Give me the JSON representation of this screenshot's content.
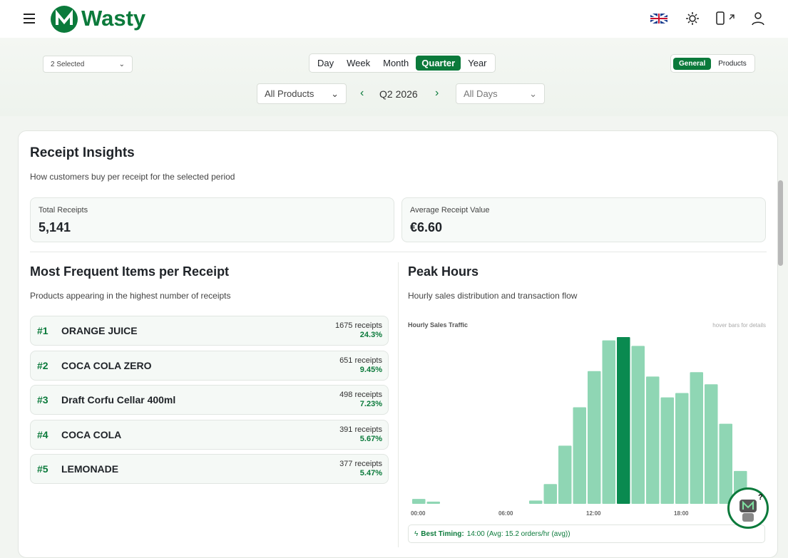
{
  "header": {
    "logo": "Wasty"
  },
  "filters": {
    "group": "2 Selected",
    "periods": [
      "Day",
      "Week",
      "Month",
      "Quarter",
      "Year"
    ],
    "active_period": 3,
    "views": [
      "General",
      "Products"
    ],
    "active_view": 0,
    "products": "All Products",
    "period_label": "Q2 2026",
    "days": "All Days"
  },
  "receipt_insights": {
    "title": "Receipt Insights",
    "subtitle": "How customers buy per receipt for the selected period",
    "stats": [
      {
        "label": "Total Receipts",
        "value": "5,141"
      },
      {
        "label": "Average Receipt Value",
        "value": "€6.60"
      }
    ]
  },
  "frequent_items": {
    "title": "Most Frequent Items per Receipt",
    "subtitle": "Products appearing in the highest number of receipts",
    "items": [
      {
        "rank": "#1",
        "name": "ORANGE JUICE",
        "receipts": "1675 receipts",
        "share": "24.3%"
      },
      {
        "rank": "#2",
        "name": "COCA COLA ZERO",
        "receipts": "651 receipts",
        "share": "9.45%"
      },
      {
        "rank": "#3",
        "name": "Draft Corfu Cellar 400ml",
        "receipts": "498 receipts",
        "share": "7.23%"
      },
      {
        "rank": "#4",
        "name": "COCA COLA",
        "receipts": "391 receipts",
        "share": "5.67%"
      },
      {
        "rank": "#5",
        "name": "LEMONADE",
        "receipts": "377 receipts",
        "share": "5.47%"
      }
    ]
  },
  "peak_hours": {
    "title": "Peak Hours",
    "subtitle": "Hourly sales distribution and transaction flow",
    "chart_data": {
      "type": "bar",
      "title": "Hourly Sales Traffic",
      "hint": "hover bars for details",
      "categories": [
        "00:00",
        null,
        null,
        null,
        null,
        null,
        "06:00",
        null,
        null,
        null,
        null,
        null,
        "12:00",
        null,
        null,
        null,
        null,
        null,
        "18:00",
        null,
        null,
        null,
        null,
        null
      ],
      "values": [
        0.45,
        0.2,
        0,
        0,
        0,
        0,
        0,
        0,
        0.3,
        1.8,
        5.3,
        8.8,
        12.1,
        14.9,
        15.2,
        14.4,
        11.6,
        9.7,
        10.1,
        12.0,
        10.9,
        7.3,
        3.0,
        1.1
      ],
      "color": "#8fd6b4",
      "highlight_color": "#0a8a50"
    },
    "best_timing_label": "Best Timing:",
    "best_timing": "14:00 (Avg: 15.2 orders/hr (avg))"
  }
}
